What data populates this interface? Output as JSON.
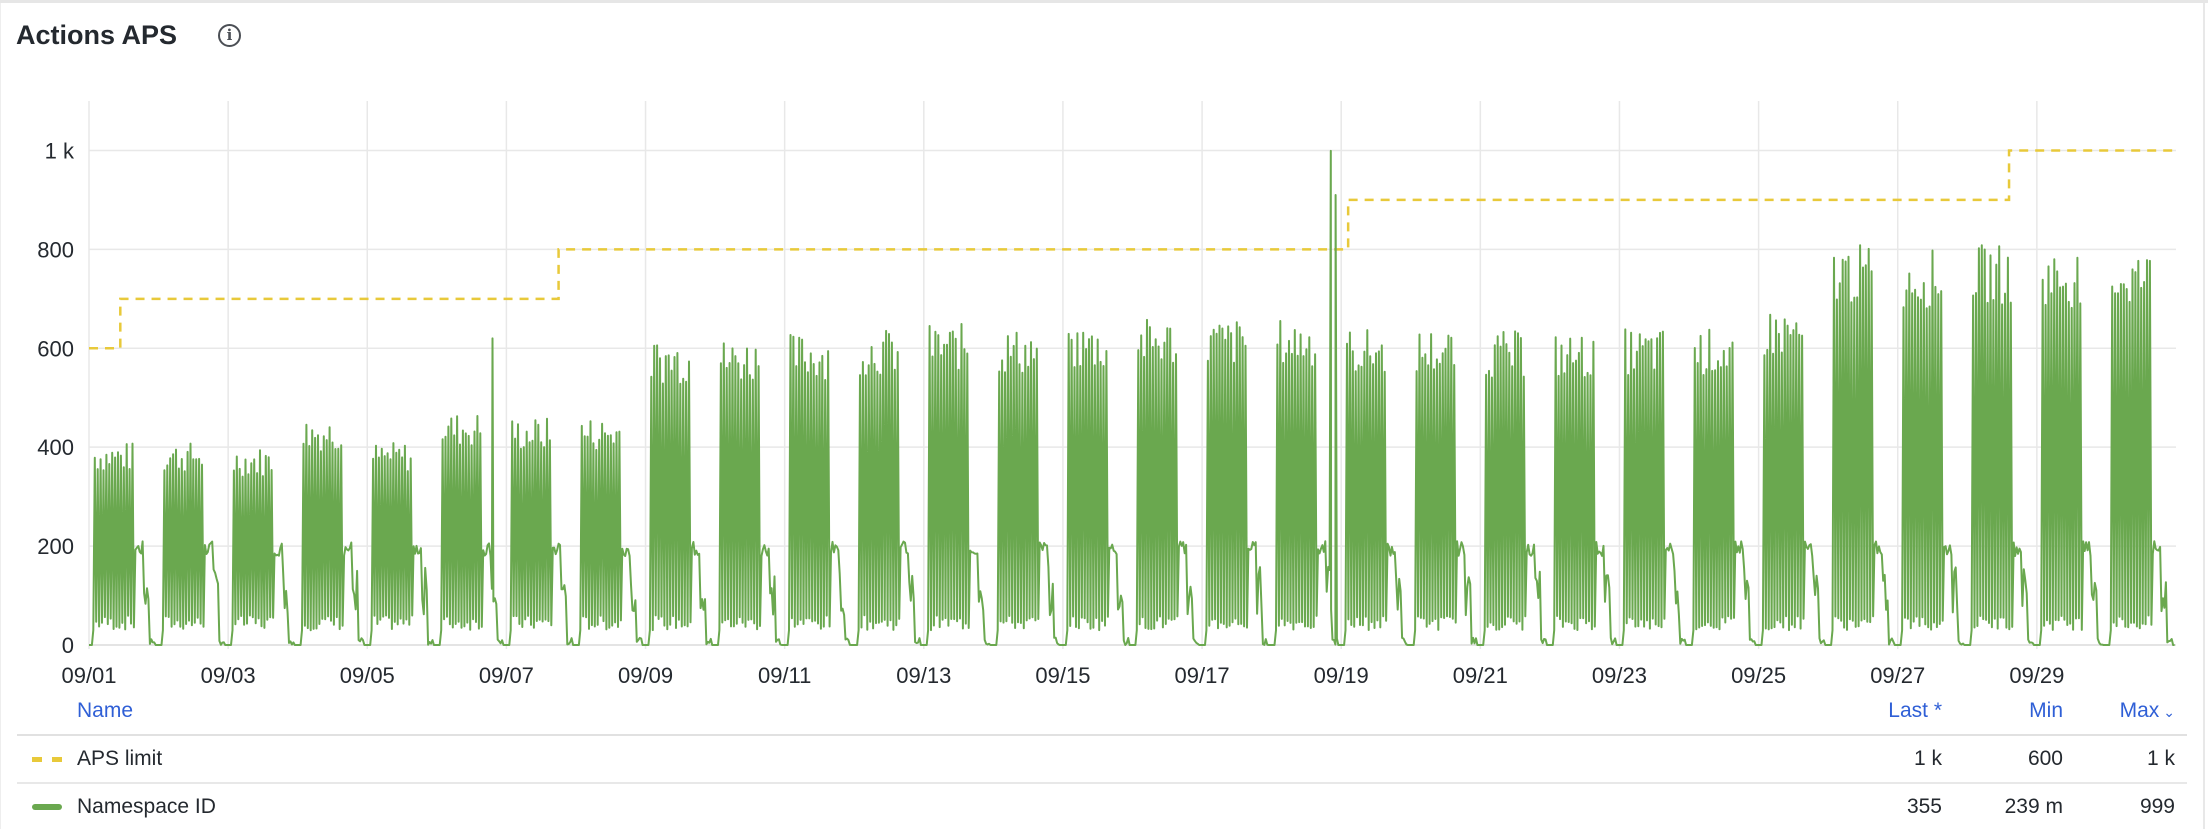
{
  "panel": {
    "title": "Actions APS",
    "info_icon": "info-circle-icon"
  },
  "chart_data": {
    "type": "line",
    "title": "Actions APS",
    "xlabel": "",
    "ylabel": "",
    "x_range": [
      "09/01",
      "10/01"
    ],
    "ylim": [
      0,
      1100
    ],
    "y_ticks": [
      0,
      200,
      400,
      600,
      800,
      1000
    ],
    "y_tick_labels": [
      "0",
      "200",
      "400",
      "600",
      "800",
      "1 k"
    ],
    "x_tick_labels": [
      "09/01",
      "09/03",
      "09/05",
      "09/07",
      "09/09",
      "09/11",
      "09/13",
      "09/15",
      "09/17",
      "09/19",
      "09/21",
      "09/23",
      "09/25",
      "09/27",
      "09/29"
    ],
    "grid": true,
    "series": [
      {
        "name": "APS limit",
        "color": "#e8c93a",
        "style": "dashed",
        "steps": [
          {
            "from_day": 0,
            "value": 600
          },
          {
            "from_day": 0.45,
            "value": 700
          },
          {
            "from_day": 6.75,
            "value": 800
          },
          {
            "from_day": 18.1,
            "value": 900
          },
          {
            "from_day": 27.6,
            "value": 1000
          }
        ]
      },
      {
        "name": "Namespace ID",
        "color": "#6aa84f",
        "style": "solid",
        "daily_peak": [
          410,
          410,
          400,
          460,
          410,
          470,
          460,
          460,
          620,
          620,
          630,
          640,
          650,
          640,
          650,
          660,
          660,
          660,
          640,
          640,
          635,
          630,
          640,
          640,
          680,
          810,
          800,
          810,
          800,
          800
        ],
        "spikes": [
          {
            "day": 5.8,
            "value": 620
          },
          {
            "day": 17.85,
            "value": 999
          },
          {
            "day": 17.92,
            "value": 910
          }
        ]
      }
    ]
  },
  "legend": {
    "headers": {
      "name": "Name",
      "last": "Last *",
      "min": "Min",
      "max": "Max"
    },
    "rows": [
      {
        "name": "APS limit",
        "last": "1 k",
        "min": "600",
        "max": "1 k"
      },
      {
        "name": "Namespace ID",
        "last": "355",
        "min": "239 m",
        "max": "999"
      }
    ]
  }
}
